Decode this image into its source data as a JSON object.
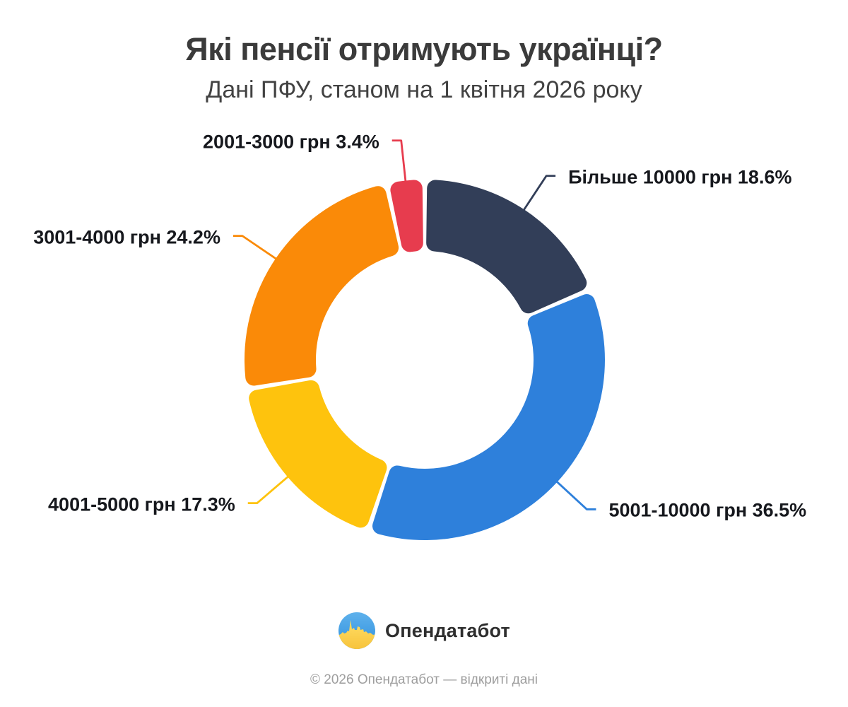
{
  "header": {
    "title": "Які пенсії отримують українці?",
    "subtitle": "Дані ПФУ, станом на 1 квітня 2026 року"
  },
  "chart_data": {
    "type": "pie",
    "subtype": "donut",
    "title": "Які пенсії отримують українці?",
    "subtitle": "Дані ПФУ, станом на 1 квітня 2026 року",
    "unit": "%",
    "start_angle_deg": 0,
    "direction": "clockwise",
    "segments": [
      {
        "label": "Більше 10000 грн",
        "value": 18.6,
        "display_label": "Більше 10000 грн 18.6%",
        "color": "#323E58"
      },
      {
        "label": "5001-10000 грн",
        "value": 36.5,
        "display_label": "5001-10000 грн 36.5%",
        "color": "#2E80DB"
      },
      {
        "label": "4001-5000 грн",
        "value": 17.3,
        "display_label": "4001-5000 грн 17.3%",
        "color": "#FEC30D"
      },
      {
        "label": "3001-4000 грн",
        "value": 24.2,
        "display_label": "3001-4000 грн 24.2%",
        "color": "#FA8A08"
      },
      {
        "label": "2001-3000 грн",
        "value": 3.4,
        "display_label": "2001-3000 грн 3.4%",
        "color": "#E73C4E"
      }
    ]
  },
  "branding": {
    "logo_text": "Опендатабот",
    "logo_icon": "opendatabot-flag-circle-icon",
    "logo_icon_colors": {
      "blue_top": "#3E9EE3",
      "yellow_bottom": "#FAC63E"
    }
  },
  "footer": {
    "copyright": "© 2026 Опендатабот — відкриті дані"
  }
}
